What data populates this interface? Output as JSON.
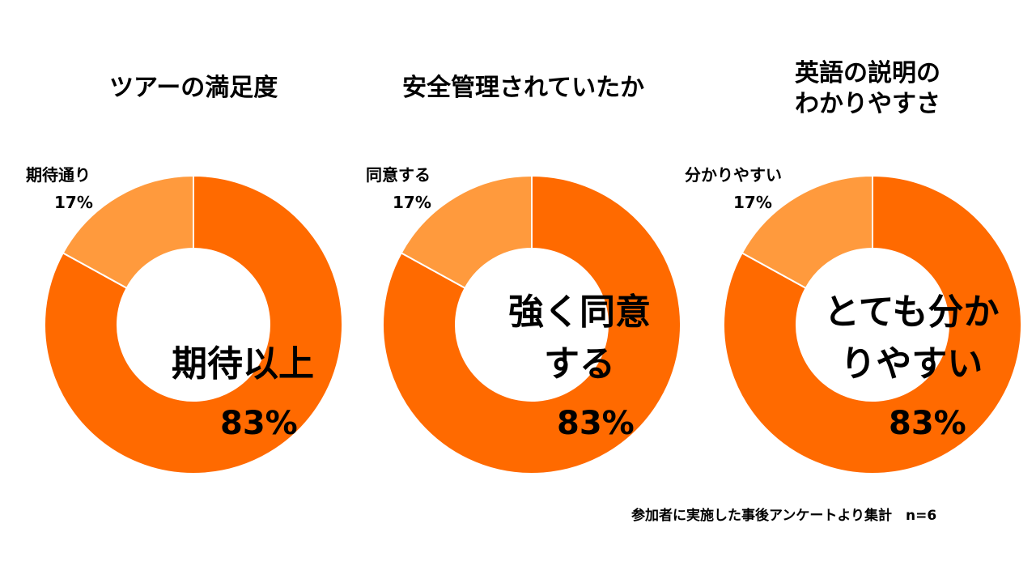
{
  "colors": {
    "major": "#ff6a00",
    "minor": "#ff9a3d",
    "separator": "#ffffff"
  },
  "footnote": "参加者に実施した事後アンケートより集計　n=6",
  "chart_data": [
    {
      "type": "donut",
      "title": [
        "ツアーの満足度"
      ],
      "slices": [
        {
          "label": [
            "期待以上"
          ],
          "value": 83,
          "pct_label": "83%"
        },
        {
          "label": [
            "期待通り"
          ],
          "value": 17,
          "pct_label": "17%"
        }
      ]
    },
    {
      "type": "donut",
      "title": [
        "安全管理されていたか"
      ],
      "slices": [
        {
          "label": [
            "強く同意",
            "する"
          ],
          "value": 83,
          "pct_label": "83%"
        },
        {
          "label": [
            "同意する"
          ],
          "value": 17,
          "pct_label": "17%"
        }
      ]
    },
    {
      "type": "donut",
      "title": [
        "英語の説明の",
        "わかりやすさ"
      ],
      "slices": [
        {
          "label": [
            "とても分か",
            "りやすい"
          ],
          "value": 83,
          "pct_label": "83%"
        },
        {
          "label": [
            "分かりやすい"
          ],
          "value": 17,
          "pct_label": "17%"
        }
      ]
    }
  ]
}
